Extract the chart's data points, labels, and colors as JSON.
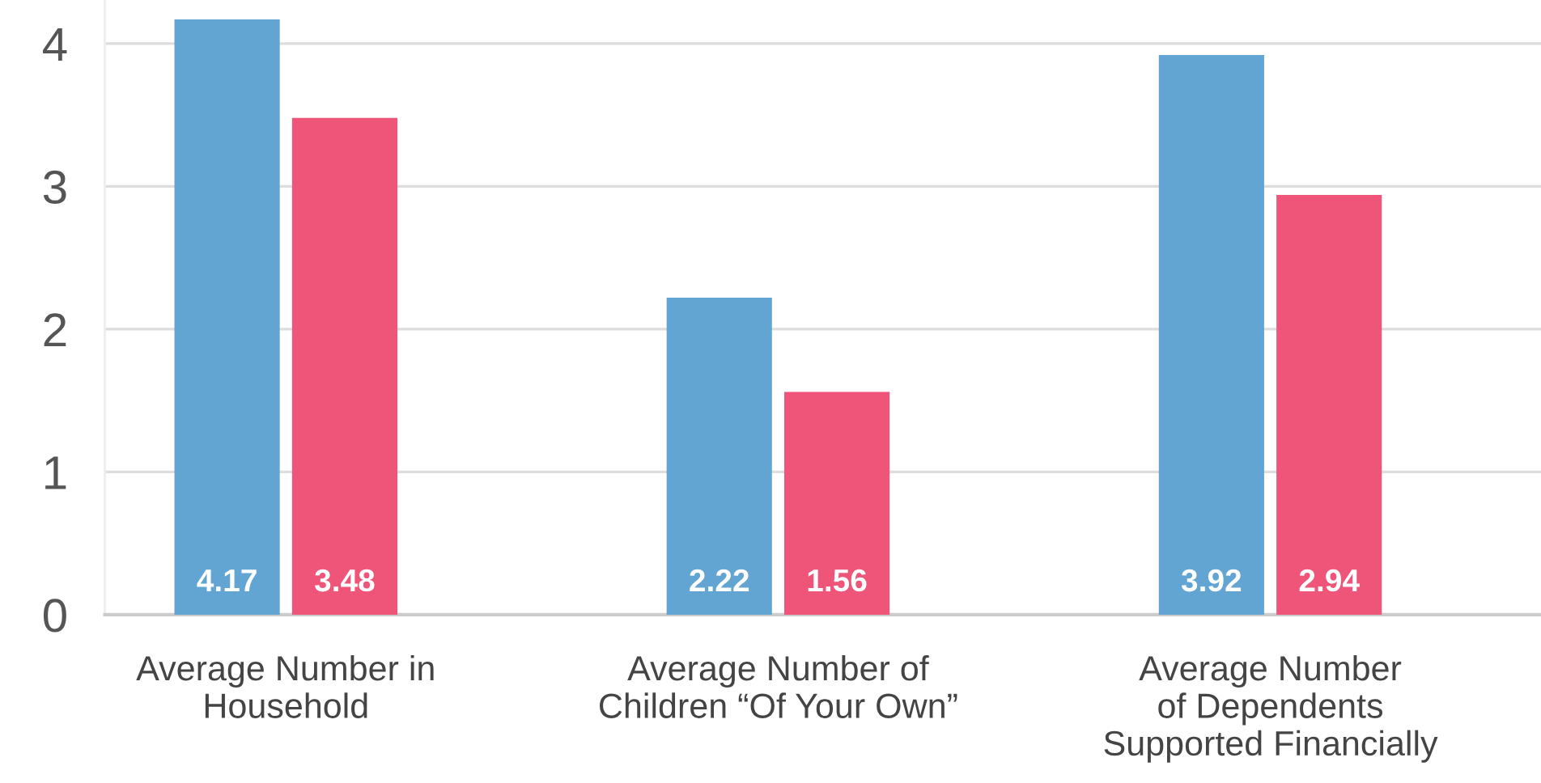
{
  "chart_data": {
    "type": "bar",
    "categories": [
      "Average Number in\nHousehold",
      "Average Number of\nChildren “Of Your Own”",
      "Average Number\nof Dependents\nSupported Financially"
    ],
    "series": [
      {
        "color": "#62a5d3",
        "values": [
          4.17,
          2.22,
          3.92
        ]
      },
      {
        "color": "#ef5479",
        "values": [
          3.48,
          1.56,
          2.94
        ]
      }
    ],
    "ylim": [
      0,
      4.3
    ],
    "yticks": [
      0,
      1,
      2,
      3,
      4
    ],
    "grid": "y",
    "data_labels": true,
    "legend": false
  }
}
